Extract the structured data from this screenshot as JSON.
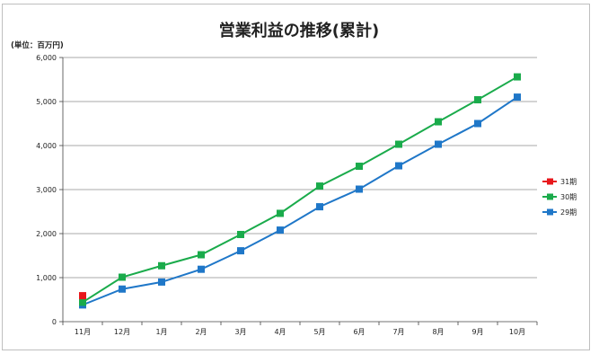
{
  "chart_data": {
    "type": "line",
    "title": "営業利益の推移(累計)",
    "unit_label": "(単位：百万円)",
    "categories": [
      "11月",
      "12月",
      "1月",
      "2月",
      "3月",
      "4月",
      "5月",
      "6月",
      "7月",
      "8月",
      "9月",
      "10月"
    ],
    "y_ticks": [
      "0",
      "1,000",
      "2,000",
      "3,000",
      "4,000",
      "5,000",
      "6,000"
    ],
    "ylim": [
      0,
      6000
    ],
    "grid": true,
    "legend_position": "right",
    "series": [
      {
        "name": "31期",
        "color": "#e8161b",
        "values": [
          590,
          null,
          null,
          null,
          null,
          null,
          null,
          null,
          null,
          null,
          null,
          null
        ]
      },
      {
        "name": "30期",
        "color": "#1aab4b",
        "values": [
          440,
          1010,
          1270,
          1520,
          1980,
          2460,
          3080,
          3530,
          4030,
          4540,
          5040,
          5560
        ]
      },
      {
        "name": "29期",
        "color": "#1f77c8",
        "values": [
          380,
          740,
          900,
          1190,
          1610,
          2080,
          2610,
          3010,
          3540,
          4030,
          4500,
          5100
        ]
      }
    ]
  }
}
